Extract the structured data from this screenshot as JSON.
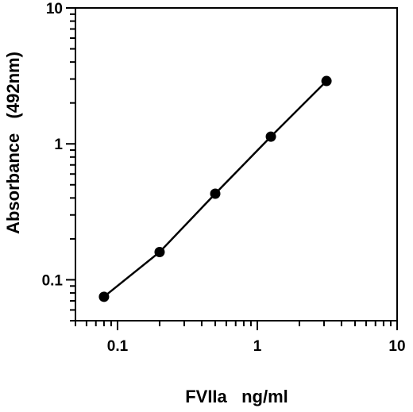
{
  "chart_data": {
    "type": "line",
    "title": "",
    "xlabel": "FVIIa   ng/ml",
    "ylabel": "Absorbance   (492nm)",
    "xscale": "log",
    "yscale": "log",
    "xlim": [
      0.05,
      10
    ],
    "ylim": [
      0.05,
      10
    ],
    "xticks": [
      0.1,
      1,
      10
    ],
    "yticks": [
      0.1,
      1,
      10
    ],
    "xtick_labels": [
      "0.1",
      "1",
      "10"
    ],
    "ytick_labels": [
      "0.1",
      "1",
      "10"
    ],
    "grid": false,
    "legend": "none",
    "series": [
      {
        "x": [
          0.08,
          0.2,
          0.5,
          1.25,
          3.125
        ],
        "y": [
          0.075,
          0.16,
          0.43,
          1.13,
          2.9
        ],
        "color": "#000000",
        "marker": "circle"
      }
    ]
  }
}
